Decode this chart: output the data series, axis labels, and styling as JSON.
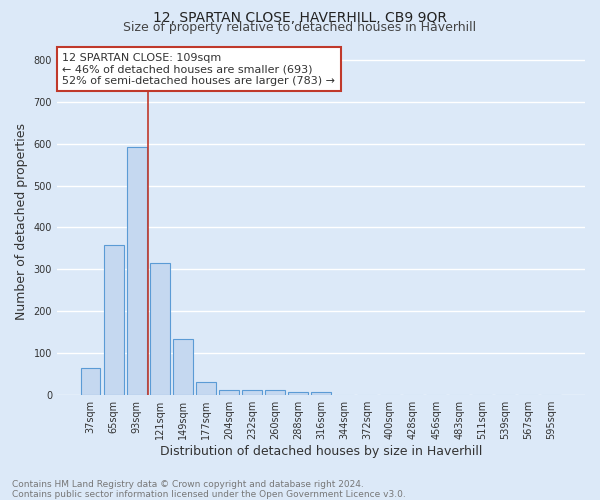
{
  "title1": "12, SPARTAN CLOSE, HAVERHILL, CB9 9QR",
  "title2": "Size of property relative to detached houses in Haverhill",
  "xlabel": "Distribution of detached houses by size in Haverhill",
  "ylabel": "Number of detached properties",
  "bar_labels": [
    "37sqm",
    "65sqm",
    "93sqm",
    "121sqm",
    "149sqm",
    "177sqm",
    "204sqm",
    "232sqm",
    "260sqm",
    "288sqm",
    "316sqm",
    "344sqm",
    "372sqm",
    "400sqm",
    "428sqm",
    "456sqm",
    "483sqm",
    "511sqm",
    "539sqm",
    "567sqm",
    "595sqm"
  ],
  "bar_heights": [
    65,
    357,
    593,
    315,
    133,
    30,
    11,
    11,
    11,
    7,
    7,
    0,
    0,
    0,
    0,
    0,
    0,
    0,
    0,
    0,
    0
  ],
  "bar_color": "#c5d8f0",
  "bar_edge_color": "#5b9bd5",
  "bar_edge_width": 0.8,
  "vline_x_idx": 2.5,
  "vline_color": "#c0392b",
  "annotation_text": "12 SPARTAN CLOSE: 109sqm\n← 46% of detached houses are smaller (693)\n52% of semi-detached houses are larger (783) →",
  "annotation_box_color": "#ffffff",
  "annotation_box_edge": "#c0392b",
  "ylim": [
    0,
    830
  ],
  "yticks": [
    0,
    100,
    200,
    300,
    400,
    500,
    600,
    700,
    800
  ],
  "footer_text": "Contains HM Land Registry data © Crown copyright and database right 2024.\nContains public sector information licensed under the Open Government Licence v3.0.",
  "bg_color": "#dce9f8",
  "plot_bg_color": "#dce9f8",
  "grid_color": "#ffffff",
  "title_fontsize": 10,
  "subtitle_fontsize": 9,
  "axis_label_fontsize": 9,
  "tick_fontsize": 7,
  "annotation_fontsize": 8,
  "footer_fontsize": 6.5
}
